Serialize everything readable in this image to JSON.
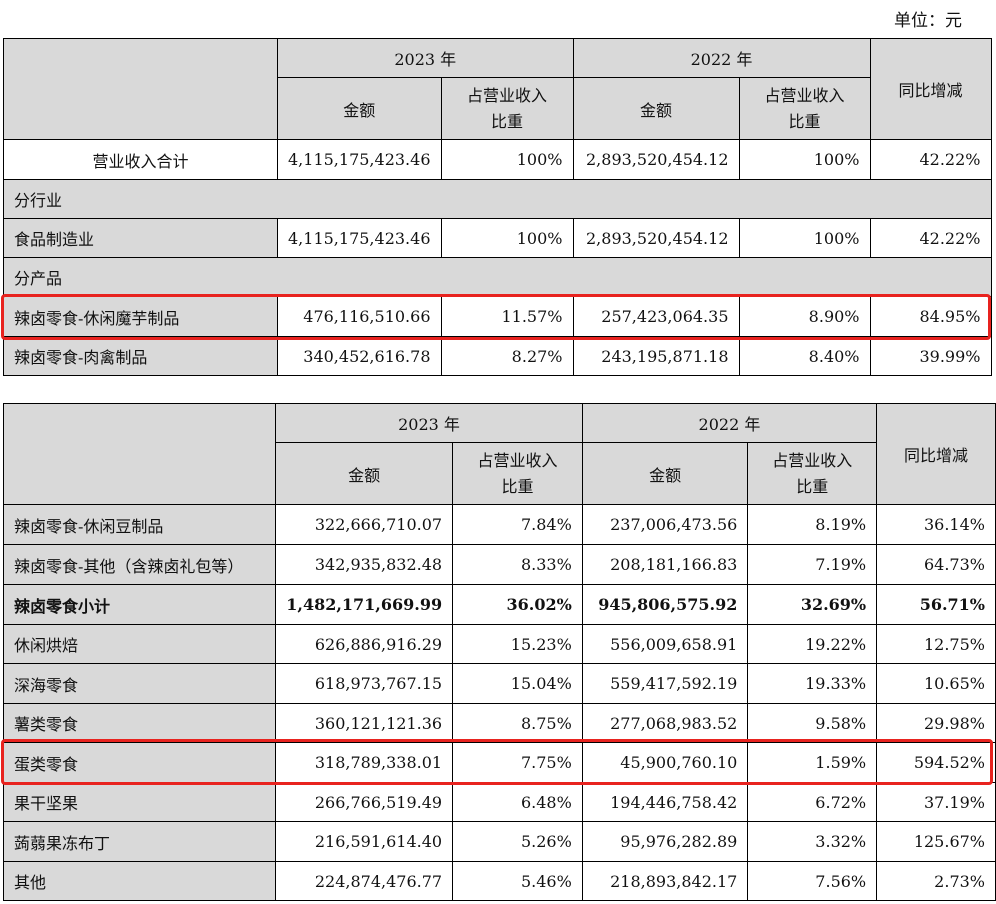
{
  "unit_label": "单位：元",
  "headers": {
    "year_2023": "2023 年",
    "year_2022": "2022 年",
    "amount": "金额",
    "share_line1": "占营业收入",
    "share_line2": "比重",
    "yoy": "同比增减"
  },
  "table1": {
    "total": {
      "name": "营业收入合计",
      "a2023": "4,115,175,423.46",
      "p2023": "100%",
      "a2022": "2,893,520,454.12",
      "p2022": "100%",
      "yoy": "42.22%"
    },
    "section_industry": "分行业",
    "industry_row": {
      "name": "食品制造业",
      "a2023": "4,115,175,423.46",
      "p2023": "100%",
      "a2022": "2,893,520,454.12",
      "p2022": "100%",
      "yoy": "42.22%"
    },
    "section_product": "分产品",
    "rows": [
      {
        "name": "辣卤零食-休闲魔芋制品",
        "a2023": "476,116,510.66",
        "p2023": "11.57%",
        "a2022": "257,423,064.35",
        "p2022": "8.90%",
        "yoy": "84.95%"
      },
      {
        "name": "辣卤零食-肉禽制品",
        "a2023": "340,452,616.78",
        "p2023": "8.27%",
        "a2022": "243,195,871.18",
        "p2022": "8.40%",
        "yoy": "39.99%"
      }
    ]
  },
  "table2": {
    "rows": [
      {
        "name": "辣卤零食-休闲豆制品",
        "a2023": "322,666,710.07",
        "p2023": "7.84%",
        "a2022": "237,006,473.56",
        "p2022": "8.19%",
        "yoy": "36.14%"
      },
      {
        "name": "辣卤零食-其他（含辣卤礼包等）",
        "a2023": "342,935,832.48",
        "p2023": "8.33%",
        "a2022": "208,181,166.83",
        "p2022": "7.19%",
        "yoy": "64.73%"
      },
      {
        "name": "辣卤零食小计",
        "a2023": "1,482,171,669.99",
        "p2023": "36.02%",
        "a2022": "945,806,575.92",
        "p2022": "32.69%",
        "yoy": "56.71%"
      },
      {
        "name": "休闲烘焙",
        "a2023": "626,886,916.29",
        "p2023": "15.23%",
        "a2022": "556,009,658.91",
        "p2022": "19.22%",
        "yoy": "12.75%"
      },
      {
        "name": "深海零食",
        "a2023": "618,973,767.15",
        "p2023": "15.04%",
        "a2022": "559,417,592.19",
        "p2022": "19.33%",
        "yoy": "10.65%"
      },
      {
        "name": "薯类零食",
        "a2023": "360,121,121.36",
        "p2023": "8.75%",
        "a2022": "277,068,983.52",
        "p2022": "9.58%",
        "yoy": "29.98%"
      },
      {
        "name": "蛋类零食",
        "a2023": "318,789,338.01",
        "p2023": "7.75%",
        "a2022": "45,900,760.10",
        "p2022": "1.59%",
        "yoy": "594.52%"
      },
      {
        "name": "果干坚果",
        "a2023": "266,766,519.49",
        "p2023": "6.48%",
        "a2022": "194,446,758.42",
        "p2022": "6.72%",
        "yoy": "37.19%"
      },
      {
        "name": "蒟蒻果冻布丁",
        "a2023": "216,591,614.40",
        "p2023": "5.26%",
        "a2022": "95,976,282.89",
        "p2022": "3.32%",
        "yoy": "125.67%"
      },
      {
        "name": "其他",
        "a2023": "224,874,476.77",
        "p2023": "5.46%",
        "a2022": "218,893,842.17",
        "p2022": "7.56%",
        "yoy": "2.73%"
      }
    ]
  }
}
